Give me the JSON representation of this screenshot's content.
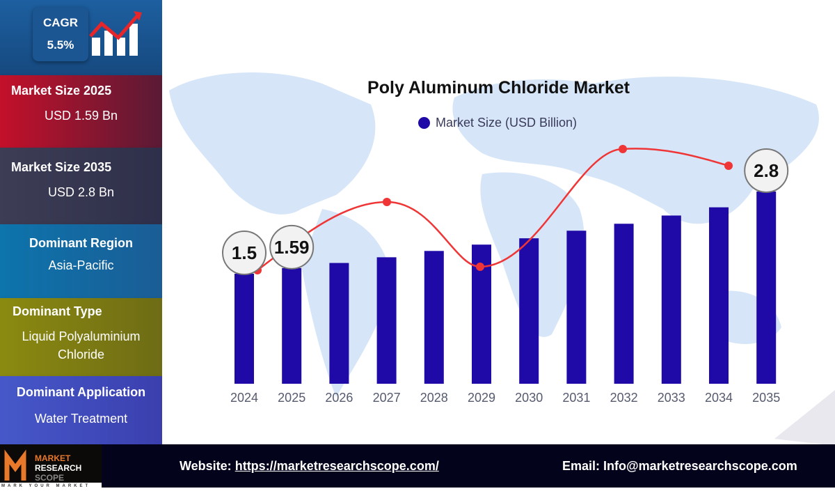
{
  "sidebar": {
    "cagr": {
      "label": "CAGR",
      "value": "5.5%"
    },
    "panels": [
      {
        "title": "Market Size 2025",
        "value": "USD 1.59 Bn"
      },
      {
        "title": "Market Size 2035",
        "value": "USD 2.8 Bn"
      },
      {
        "title": "Dominant Region",
        "value": "Asia-Pacific"
      },
      {
        "title": "Dominant Type",
        "value": "Liquid Polyaluminium Chloride"
      },
      {
        "title": "Dominant Application",
        "value": "Water Treatment"
      }
    ]
  },
  "footer": {
    "website_label": "Website:",
    "website": "https://marketresearchscope.com/",
    "email_label": "Email:",
    "email": "Info@marketresearchscope.com",
    "logo_text": [
      "MARKET",
      "RESEARCH",
      "SCOPE",
      "MARK YOUR MARKET"
    ]
  },
  "colors": {
    "bar": "#1f0aa8",
    "trend": "#ef3535",
    "map": "#d6e6f8"
  },
  "chart_data": {
    "type": "bar",
    "title": "Poly Aluminum Chloride Market",
    "series": [
      {
        "name": "Market Size (USD Billion)",
        "values": [
          1.5,
          1.59,
          1.67,
          1.76,
          1.86,
          1.96,
          2.06,
          2.18,
          2.29,
          2.42,
          2.55,
          2.8
        ]
      }
    ],
    "categories": [
      "2024",
      "2025",
      "2026",
      "2027",
      "2028",
      "2029",
      "2030",
      "2031",
      "2032",
      "2033",
      "2034",
      "2035"
    ],
    "data_labels": [
      {
        "category": "2024",
        "text": "1.5"
      },
      {
        "category": "2025",
        "text": "1.59"
      },
      {
        "category": "2035",
        "text": "2.8"
      }
    ],
    "legend": "top",
    "grid": false
  }
}
